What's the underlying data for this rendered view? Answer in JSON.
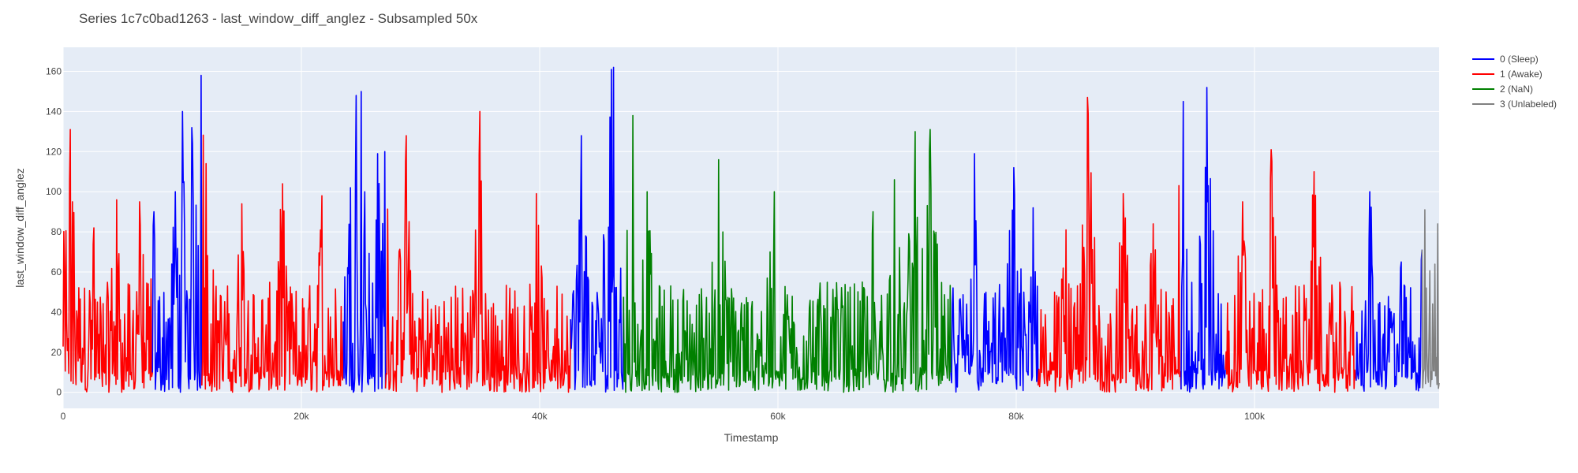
{
  "chart_data": {
    "type": "line",
    "title": "Series 1c7c0bad1263 - last_window_diff_anglez - Subsampled 50x",
    "xlabel": "Timestamp",
    "ylabel": "last_window_diff_anglez",
    "xlim": [
      0,
      115500
    ],
    "ylim": [
      -8,
      172
    ],
    "x_ticks": [
      0,
      20000,
      40000,
      60000,
      80000,
      100000
    ],
    "x_tick_labels": [
      "0",
      "20k",
      "40k",
      "60k",
      "80k",
      "100k"
    ],
    "y_ticks": [
      0,
      20,
      40,
      60,
      80,
      100,
      120,
      140,
      160
    ],
    "y_tick_labels": [
      "0",
      "20",
      "40",
      "60",
      "80",
      "100",
      "120",
      "140",
      "160"
    ],
    "grid": true,
    "legend_position": "top-right outside",
    "plot_bgcolor": "#E5ECF6",
    "series": [
      {
        "name": "0 (Sleep)",
        "color": "#0000FF",
        "segments": [
          [
            7500,
            11600
          ],
          [
            23500,
            27000
          ],
          [
            42600,
            47000
          ],
          [
            74500,
            81800
          ],
          [
            93800,
            97500
          ],
          [
            108500,
            114000
          ]
        ]
      },
      {
        "name": "1 (Awake)",
        "color": "#FF0000",
        "segments": [
          [
            0,
            7500
          ],
          [
            11600,
            23500
          ],
          [
            27000,
            42600
          ],
          [
            81800,
            93800
          ],
          [
            97500,
            108500
          ]
        ]
      },
      {
        "name": "2 (NaN)",
        "color": "#008000",
        "segments": [
          [
            47000,
            74500
          ]
        ]
      },
      {
        "name": "3 (Unlabeled)",
        "color": "#808080",
        "segments": [
          [
            114000,
            115500
          ]
        ]
      }
    ],
    "peaks": [
      {
        "x": 600,
        "y": 131
      },
      {
        "x": 800,
        "y": 95
      },
      {
        "x": 2600,
        "y": 82
      },
      {
        "x": 4500,
        "y": 96
      },
      {
        "x": 6400,
        "y": 95
      },
      {
        "x": 7600,
        "y": 90
      },
      {
        "x": 9400,
        "y": 100
      },
      {
        "x": 10000,
        "y": 140
      },
      {
        "x": 10800,
        "y": 132
      },
      {
        "x": 11600,
        "y": 158
      },
      {
        "x": 12000,
        "y": 114
      },
      {
        "x": 15000,
        "y": 94
      },
      {
        "x": 18400,
        "y": 104
      },
      {
        "x": 21700,
        "y": 98
      },
      {
        "x": 24100,
        "y": 102
      },
      {
        "x": 24600,
        "y": 148
      },
      {
        "x": 25000,
        "y": 150
      },
      {
        "x": 25300,
        "y": 100
      },
      {
        "x": 26400,
        "y": 119
      },
      {
        "x": 27000,
        "y": 120
      },
      {
        "x": 28800,
        "y": 128
      },
      {
        "x": 35000,
        "y": 140
      },
      {
        "x": 39700,
        "y": 99
      },
      {
        "x": 43500,
        "y": 128
      },
      {
        "x": 46000,
        "y": 161
      },
      {
        "x": 46200,
        "y": 162
      },
      {
        "x": 47800,
        "y": 138
      },
      {
        "x": 49000,
        "y": 100
      },
      {
        "x": 55000,
        "y": 116
      },
      {
        "x": 59700,
        "y": 100
      },
      {
        "x": 68000,
        "y": 90
      },
      {
        "x": 69800,
        "y": 106
      },
      {
        "x": 71500,
        "y": 130
      },
      {
        "x": 72800,
        "y": 131
      },
      {
        "x": 76500,
        "y": 119
      },
      {
        "x": 79800,
        "y": 112
      },
      {
        "x": 81400,
        "y": 92
      },
      {
        "x": 84200,
        "y": 81
      },
      {
        "x": 86000,
        "y": 147
      },
      {
        "x": 89000,
        "y": 99
      },
      {
        "x": 91500,
        "y": 84
      },
      {
        "x": 94000,
        "y": 145
      },
      {
        "x": 96000,
        "y": 152
      },
      {
        "x": 99000,
        "y": 95
      },
      {
        "x": 101400,
        "y": 121
      },
      {
        "x": 105000,
        "y": 110
      },
      {
        "x": 109700,
        "y": 100
      },
      {
        "x": 112300,
        "y": 65
      },
      {
        "x": 114300,
        "y": 91
      },
      {
        "x": 115400,
        "y": 84
      }
    ]
  }
}
